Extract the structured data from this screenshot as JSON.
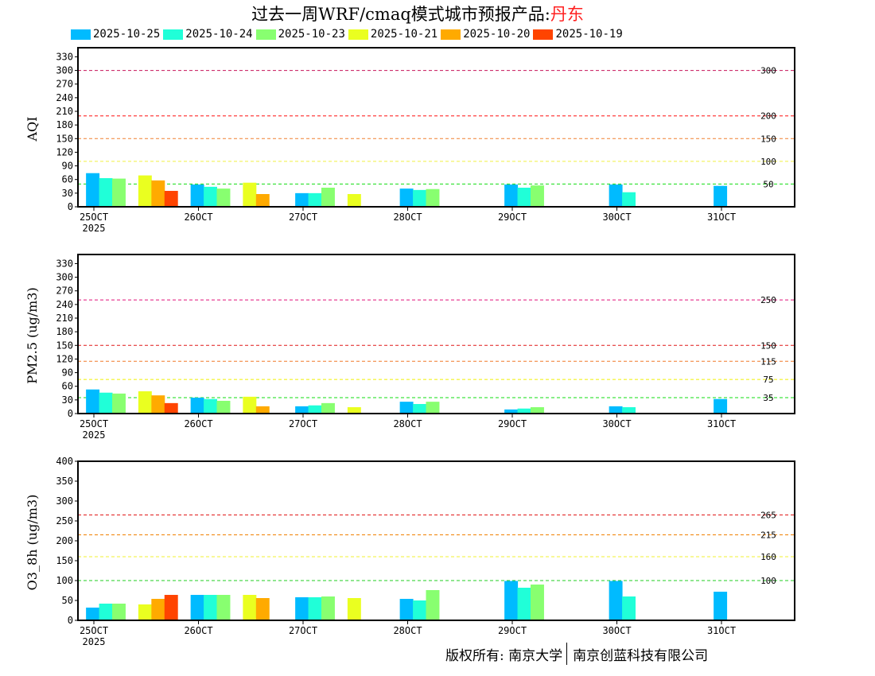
{
  "title": {
    "main": "过去一周WRF/cmaq模式城市预报产品:",
    "city": "丹东"
  },
  "footer": {
    "left": "版权所有: 南京大学",
    "right": "南京创蓝科技有限公司"
  },
  "chart_data": {
    "type": "bar",
    "x_ticks": [
      "25OCT",
      "26OCT",
      "27OCT",
      "28OCT",
      "29OCT",
      "30OCT",
      "31OCT"
    ],
    "x_year": "2025",
    "series": [
      {
        "name": "2025-10-25",
        "color": "#00bbff",
        "slot": 0
      },
      {
        "name": "2025-10-24",
        "color": "#20ffd8",
        "slot": 1
      },
      {
        "name": "2025-10-23",
        "color": "#88ff70",
        "slot": 2
      },
      {
        "name": "2025-10-21",
        "color": "#eaff20",
        "slot": 4
      },
      {
        "name": "2025-10-20",
        "color": "#ffaa00",
        "slot": 5
      },
      {
        "name": "2025-10-19",
        "color": "#ff4400",
        "slot": 6
      }
    ],
    "panels": [
      {
        "ylabel": "AQI",
        "ylim": [
          0,
          350
        ],
        "yticks": [
          0,
          30,
          60,
          90,
          120,
          150,
          180,
          210,
          240,
          270,
          300,
          330
        ],
        "thresholds": [
          {
            "value": 300,
            "label": "300",
            "color": "#c8145a"
          },
          {
            "value": 200,
            "label": "200",
            "color": "#ff1010"
          },
          {
            "value": 150,
            "label": "150",
            "color": "#f08030"
          },
          {
            "value": 100,
            "label": "100",
            "color": "#f0f040"
          },
          {
            "value": 50,
            "label": "50",
            "color": "#10dd10"
          }
        ],
        "values": [
          [
            74,
            49,
            30,
            40,
            49,
            49,
            46
          ],
          [
            63,
            44,
            30,
            37,
            42,
            32,
            null
          ],
          [
            62,
            40,
            42,
            39,
            47,
            null,
            null
          ],
          [
            69,
            53,
            28,
            null,
            null,
            null,
            null
          ],
          [
            58,
            28,
            null,
            null,
            null,
            null,
            null
          ],
          [
            35,
            null,
            null,
            null,
            null,
            null,
            null
          ]
        ]
      },
      {
        "ylabel": "PM2.5 (ug/m3)",
        "ylim": [
          0,
          350
        ],
        "yticks": [
          0,
          30,
          60,
          90,
          120,
          150,
          180,
          210,
          240,
          270,
          300,
          330
        ],
        "thresholds": [
          {
            "value": 250,
            "label": "250",
            "color": "#e0107a"
          },
          {
            "value": 150,
            "label": "150",
            "color": "#e01818"
          },
          {
            "value": 115,
            "label": "115",
            "color": "#f07828"
          },
          {
            "value": 75,
            "label": "75",
            "color": "#f0f000"
          },
          {
            "value": 35,
            "label": "35",
            "color": "#10dd10"
          }
        ],
        "values": [
          [
            53,
            35,
            16,
            26,
            9,
            16,
            32
          ],
          [
            46,
            32,
            18,
            21,
            11,
            14,
            null
          ],
          [
            44,
            28,
            23,
            26,
            14,
            null,
            null
          ],
          [
            49,
            37,
            14,
            null,
            null,
            null,
            null
          ],
          [
            40,
            16,
            null,
            null,
            null,
            null,
            null
          ],
          [
            23,
            null,
            null,
            null,
            null,
            null,
            null
          ]
        ]
      },
      {
        "ylabel": "O3_8h (ug/m3)",
        "ylim": [
          0,
          400
        ],
        "yticks": [
          0,
          50,
          100,
          150,
          200,
          250,
          300,
          350,
          400
        ],
        "thresholds": [
          {
            "value": 265,
            "label": "265",
            "color": "#e01818"
          },
          {
            "value": 215,
            "label": "215",
            "color": "#f08000"
          },
          {
            "value": 160,
            "label": "160",
            "color": "#f0f030"
          },
          {
            "value": 100,
            "label": "100",
            "color": "#20cc20"
          }
        ],
        "values": [
          [
            32,
            64,
            58,
            54,
            99,
            99,
            72
          ],
          [
            42,
            64,
            58,
            50,
            82,
            60,
            null
          ],
          [
            42,
            64,
            60,
            76,
            90,
            null,
            null
          ],
          [
            40,
            64,
            56,
            null,
            null,
            null,
            null
          ],
          [
            54,
            56,
            null,
            null,
            null,
            null,
            null
          ],
          [
            64,
            null,
            null,
            null,
            null,
            null,
            null
          ]
        ]
      }
    ]
  }
}
